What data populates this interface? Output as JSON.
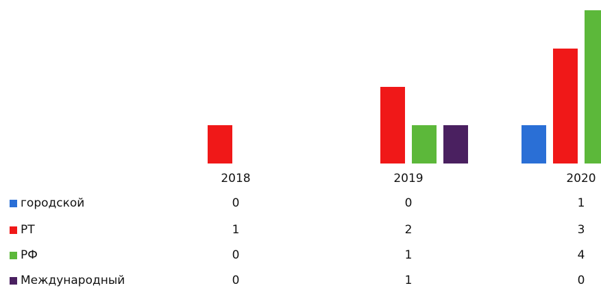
{
  "chart_data": {
    "type": "bar",
    "categories": [
      "2018",
      "2019",
      "2020"
    ],
    "series": [
      {
        "name": "городской",
        "color": "#2a6fd6",
        "values": [
          0,
          0,
          1
        ]
      },
      {
        "name": "РТ",
        "color": "#f01818",
        "values": [
          1,
          2,
          3
        ]
      },
      {
        "name": "РФ",
        "color": "#5cb83a",
        "values": [
          0,
          1,
          4
        ]
      },
      {
        "name": "Международный",
        "color": "#4a2060",
        "values": [
          0,
          1,
          0
        ]
      }
    ]
  }
}
